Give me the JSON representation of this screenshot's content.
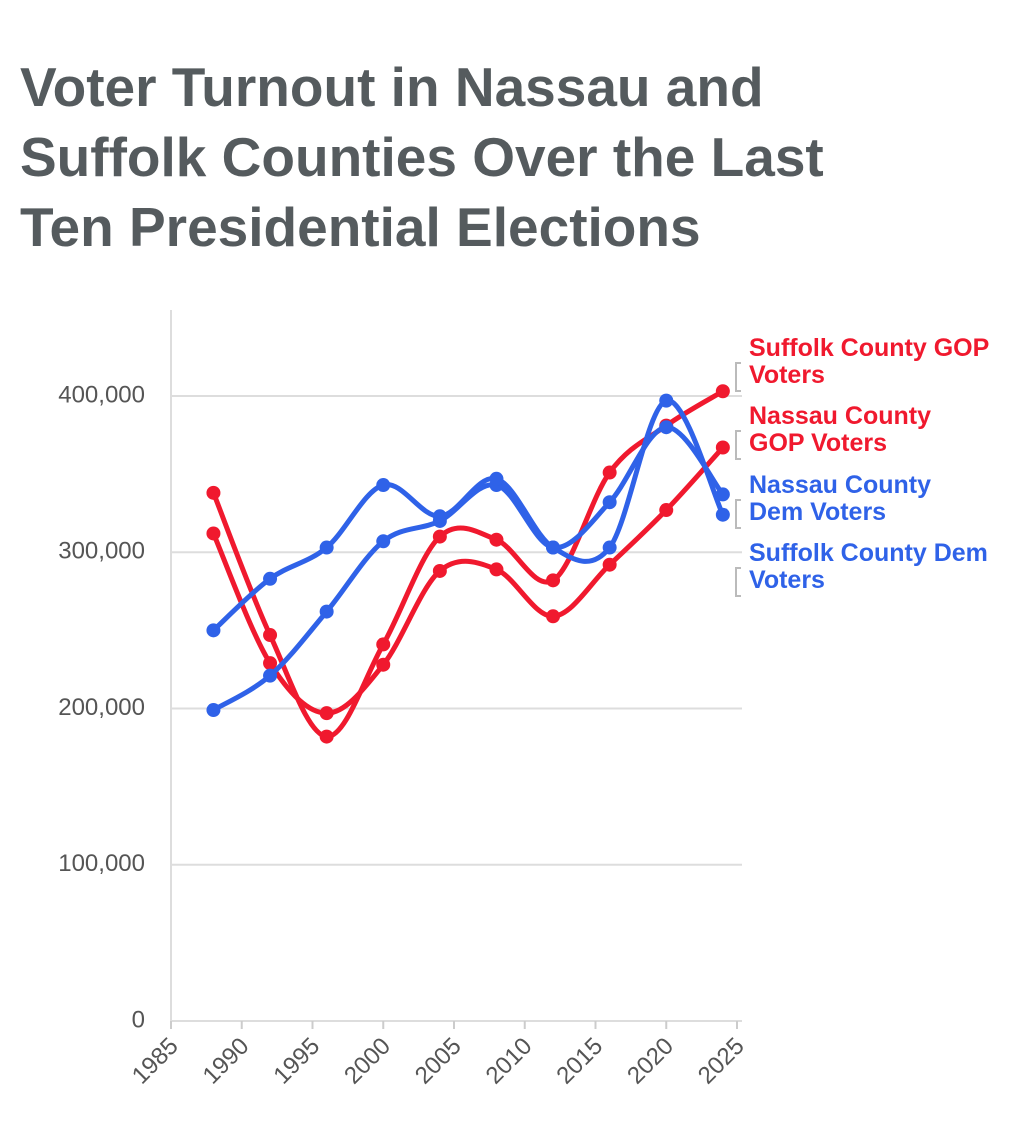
{
  "chart_data": {
    "type": "line",
    "title": "Voter Turnout in Nassau and Suffolk Counties Over the Last Ten Presidential Elections",
    "x": [
      1988,
      1992,
      1996,
      2000,
      2004,
      2008,
      2012,
      2016,
      2020,
      2024
    ],
    "series": [
      {
        "name": "Suffolk County GOP Voters",
        "color": "#f0192e",
        "values": [
          338000,
          247000,
          182000,
          241000,
          310000,
          308000,
          282000,
          351000,
          381000,
          403000
        ]
      },
      {
        "name": "Nassau County GOP Voters",
        "color": "#f0192e",
        "values": [
          312000,
          229000,
          197000,
          228000,
          288000,
          289000,
          259000,
          292000,
          327000,
          367000
        ]
      },
      {
        "name": "Nassau County Dem Voters",
        "color": "#2f62e8",
        "values": [
          199000,
          221000,
          262000,
          307000,
          320000,
          343000,
          303000,
          332000,
          380000,
          337000
        ]
      },
      {
        "name": "Suffolk County Dem Voters",
        "color": "#2f62e8",
        "values": [
          250000,
          283000,
          303000,
          343000,
          323000,
          347000,
          303000,
          303000,
          397000,
          324000
        ]
      }
    ],
    "xlim": [
      1985,
      2025
    ],
    "xticks": [
      1985,
      1990,
      1995,
      2000,
      2005,
      2010,
      2015,
      2020,
      2025
    ],
    "ylim": [
      0,
      455000
    ],
    "yticks": [
      0,
      {
        "value": 100000,
        "label": "100,000"
      },
      {
        "value": 200000,
        "label": "200,000"
      },
      {
        "value": 300000,
        "label": "300,000"
      },
      {
        "value": 400000,
        "label": "400,000"
      }
    ],
    "grid": true
  }
}
